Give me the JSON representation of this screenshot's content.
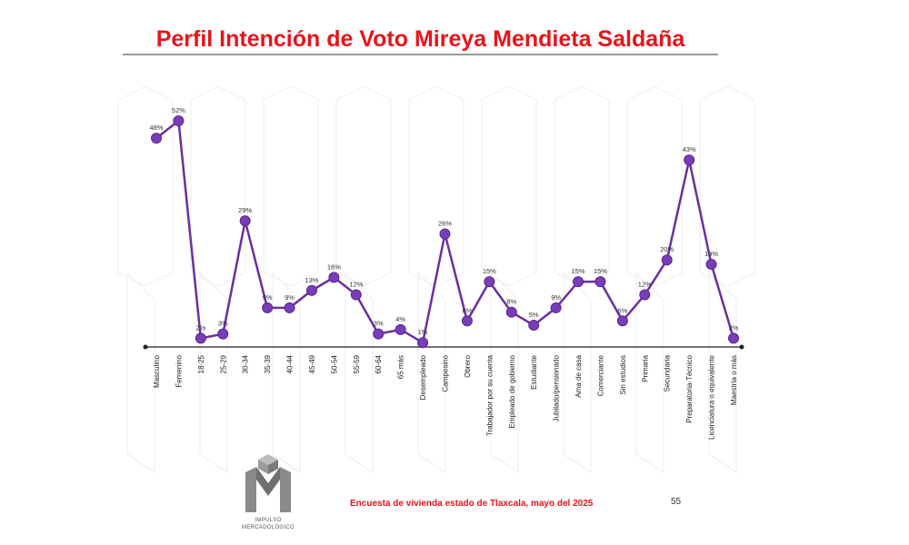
{
  "title": "Perfil Intención de Voto Mireya Mendieta Saldaña",
  "footer": {
    "survey": "Encuesta de vivienda estado de Tlaxcala, mayo  del 2025",
    "page": "55"
  },
  "logo": {
    "line1": "IMPULSO",
    "line2": "MERCADOLÓGICO"
  },
  "colors": {
    "title": "#e8141a",
    "series": "#6b2fa0",
    "marker": "#7a3db8"
  },
  "chart_data": {
    "type": "line",
    "title": "Perfil Intención de Voto Mireya Mendieta Saldaña",
    "xlabel": "",
    "ylabel": "",
    "ylim": [
      0,
      52
    ],
    "grid": false,
    "categories": [
      "Masculino",
      "Femenino",
      "18-25",
      "25-29",
      "30-34",
      "35-39",
      "40-44",
      "45-49",
      "50-54",
      "55-59",
      "60-64",
      "65 más",
      "Desempleado",
      "Campesino",
      "Obrero",
      "Trabajador por su cuenta",
      "Empleado de gobierno",
      "Estudiante",
      "Jubilado/pensionado",
      "Ama de casa",
      "Comerciante",
      "Sin estudios",
      "Primaria",
      "Secundaria",
      "Preparatoria-Técnico",
      "Licenciatura o equivalente",
      "Maestría o más"
    ],
    "values": [
      48,
      52,
      2,
      3,
      29,
      9,
      9,
      13,
      16,
      12,
      3,
      4,
      1,
      26,
      6,
      15,
      8,
      5,
      9,
      15,
      15,
      6,
      12,
      20,
      43,
      19,
      2
    ],
    "labels": [
      "48%",
      "52%",
      "2%",
      "3%",
      "29%",
      "9%",
      "9%",
      "13%",
      "16%",
      "12%",
      "3%",
      "4%",
      "1%",
      "26%",
      "6%",
      "15%",
      "8%",
      "5%",
      "9%",
      "15%",
      "15%",
      "6%",
      "12%",
      "20%",
      "43%",
      "19%",
      "2%"
    ],
    "series": [
      {
        "values": [
          48,
          52,
          2,
          3,
          29,
          9,
          9,
          13,
          16,
          12,
          3,
          4,
          1,
          26,
          6,
          15,
          8,
          5,
          9,
          15,
          15,
          6,
          12,
          20,
          43,
          19,
          2
        ]
      }
    ]
  }
}
